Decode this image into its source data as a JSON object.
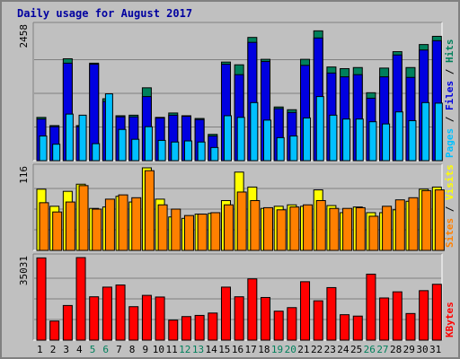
{
  "chart_data": {
    "type": "bar",
    "title": "Daily usage for August 2017",
    "colors": {
      "background": "#c0c0c0",
      "plot": "#c0c0c0",
      "title": "#0000a0",
      "hits": "#00805c",
      "files": "#0000e0",
      "pages": "#00c0ff",
      "visits": "#ffff00",
      "sites": "#ff8000",
      "kbytes": "#ff0000",
      "weekend_label": "#00805c",
      "weekday_label": "#000000",
      "separator": "#000000"
    },
    "days": [
      "1",
      "2",
      "3",
      "4",
      "5",
      "6",
      "7",
      "8",
      "9",
      "10",
      "11",
      "12",
      "13",
      "14",
      "15",
      "16",
      "17",
      "18",
      "19",
      "20",
      "21",
      "22",
      "23",
      "24",
      "25",
      "26",
      "27",
      "28",
      "29",
      "30",
      "31"
    ],
    "weekend_days": [
      "5",
      "6",
      "12",
      "13",
      "19",
      "20",
      "26",
      "27"
    ],
    "panels": [
      {
        "id": "hits_files_pages",
        "ymax_label": "2458",
        "ymax": 2458,
        "right_labels": [
          {
            "text": "Pages",
            "color": "#00c0ff"
          },
          {
            "text": " / ",
            "color": "#000000"
          },
          {
            "text": "Files",
            "color": "#0000e0"
          },
          {
            "text": " / ",
            "color": "#000000"
          },
          {
            "text": "Hits",
            "color": "#00805c"
          }
        ],
        "series": [
          {
            "name": "Hits",
            "color": "#00805c",
            "values": [
              790,
              640,
              1860,
              640,
              1780,
              1130,
              820,
              830,
              1330,
              790,
              870,
              820,
              770,
              480,
              1800,
              1750,
              2250,
              1850,
              980,
              930,
              1850,
              2370,
              1710,
              1680,
              1700,
              1240,
              1690,
              1990,
              1700,
              2120,
              2270
            ]
          },
          {
            "name": "Files",
            "color": "#0000e0",
            "values": [
              760,
              620,
              1780,
              620,
              1760,
              1080,
              800,
              800,
              1170,
              780,
              830,
              810,
              750,
              450,
              1760,
              1570,
              2160,
              1810,
              950,
              880,
              1740,
              2240,
              1600,
              1530,
              1570,
              1140,
              1530,
              1930,
              1520,
              2020,
              2190
            ]
          },
          {
            "name": "Pages",
            "color": "#00c0ff",
            "values": [
              450,
              300,
              850,
              830,
              310,
              1220,
              570,
              390,
              620,
              370,
              340,
              360,
              340,
              240,
              820,
              790,
              1060,
              740,
              420,
              450,
              780,
              1170,
              830,
              760,
              760,
              710,
              670,
              890,
              730,
              1060,
              1050
            ]
          }
        ]
      },
      {
        "id": "visits_sites",
        "ymax_label": "116",
        "ymax": 116,
        "right_labels": [
          {
            "text": "Sites",
            "color": "#ff8000"
          },
          {
            "text": " / ",
            "color": "#000000"
          },
          {
            "text": "Visits",
            "color": "#ffff00"
          }
        ],
        "series": [
          {
            "name": "Visits",
            "color": "#ffff00",
            "values": [
              86,
              62,
              83,
              93,
              59,
              61,
              76,
              68,
              116,
              72,
              47,
              45,
              51,
              52,
              70,
              110,
              89,
              59,
              62,
              64,
              62,
              85,
              63,
              53,
              61,
              53,
              53,
              57,
              69,
              86,
              89
            ]
          },
          {
            "name": "Sites",
            "color": "#ff8000",
            "values": [
              67,
              54,
              68,
              91,
              58,
              72,
              78,
              74,
              112,
              64,
              58,
              49,
              51,
              53,
              64,
              82,
              70,
              60,
              57,
              61,
              64,
              70,
              59,
              59,
              60,
              48,
              62,
              71,
              74,
              84,
              85
            ]
          }
        ]
      },
      {
        "id": "kbytes",
        "ymax_label": "35031",
        "ymax": 35031,
        "right_labels": [
          {
            "text": "KBytes",
            "color": "#ff0000"
          }
        ],
        "series": [
          {
            "name": "KBytes",
            "color": "#ff0000",
            "values": [
              34900,
              8100,
              14700,
              35031,
              18400,
              22500,
              23400,
              14200,
              19000,
              18300,
              8500,
              10000,
              10500,
              11500,
              22500,
              18400,
              26000,
              18100,
              12300,
              13800,
              24800,
              16700,
              22300,
              10800,
              10200,
              28000,
              17900,
              20500,
              11300,
              21000,
              23700
            ]
          }
        ]
      }
    ]
  }
}
